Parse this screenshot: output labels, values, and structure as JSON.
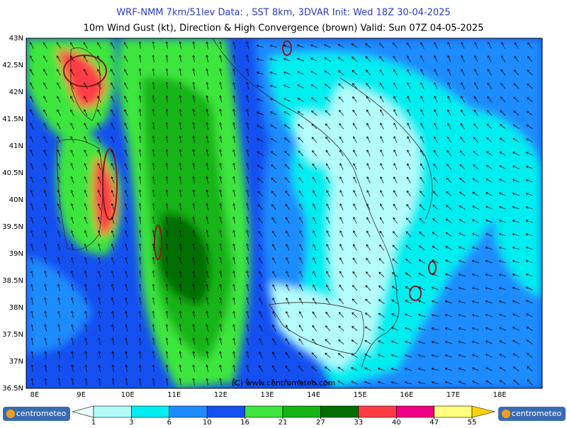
{
  "header": {
    "line1": "WRF-NMM 7km/51lev   Data: , SST 8km, 3DVAR   Init: Wed 18Z 30-04-2025",
    "line2": "10m Wind Gust (kt), Direction & High Convergence (brown)   Valid: Sun 07Z 04-05-2025"
  },
  "map": {
    "lat_labels": [
      "43N",
      "42.5N",
      "42N",
      "41.5N",
      "41N",
      "40.5N",
      "40N",
      "39.5N",
      "39N",
      "38.5N",
      "38N",
      "37.5N",
      "37N",
      "36.5N"
    ],
    "lon_labels": [
      "8E",
      "9E",
      "10E",
      "11E",
      "12E",
      "13E",
      "14E",
      "15E",
      "16E",
      "17E",
      "18E"
    ],
    "credit": "(C) www.centrometeo.com"
  },
  "legend": {
    "levels": [
      1,
      3,
      6,
      10,
      16,
      21,
      27,
      33,
      40,
      47,
      55
    ],
    "colors": [
      "#b4fcfc",
      "#00eef0",
      "#1e8cff",
      "#1450f0",
      "#3ce63c",
      "#14b414",
      "#006e00",
      "#ff3c46",
      "#f00082",
      "#ffff80"
    ],
    "under_color": "#eafcfc",
    "over_color": "#ffd200"
  },
  "logos": [
    "centrometeo",
    "centrometeo"
  ]
}
